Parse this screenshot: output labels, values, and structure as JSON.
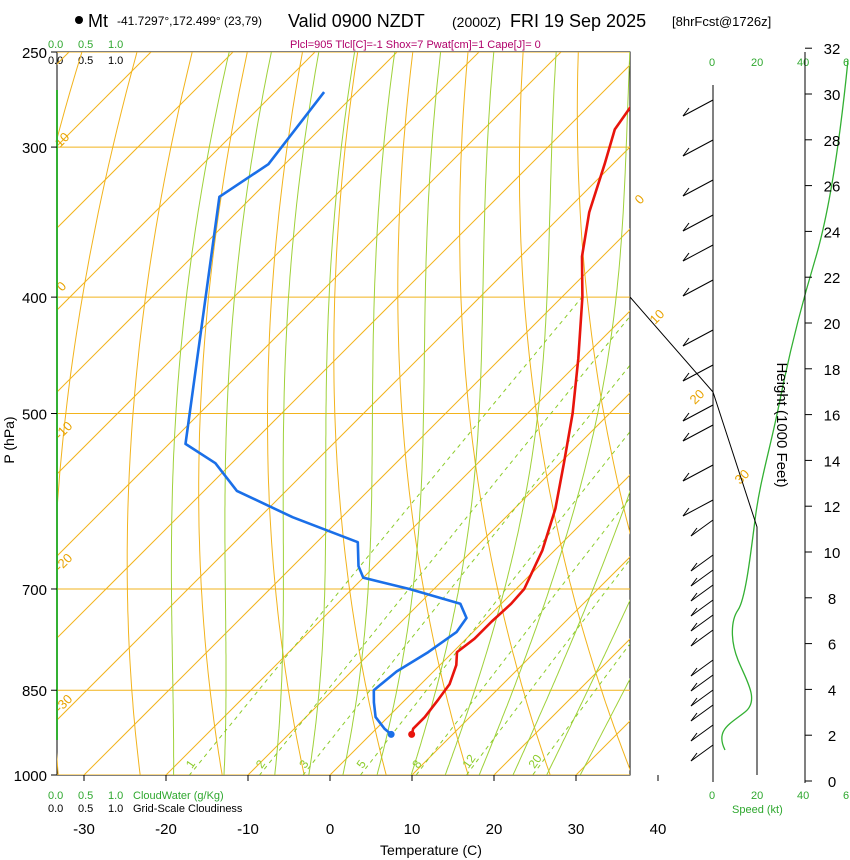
{
  "header": {
    "station": "Mt",
    "coords": "-41.7297°,172.499° (23,79)",
    "valid": "Valid 0900 NZDT",
    "utc": "(2000Z)",
    "date": "FRI 19 Sep 2025",
    "forecast": "[8hrFcst@1726z]",
    "params": "Plcl=905 Tlcl[C]=-1 Shox=7 Pwat[cm]=1 Cape[J]= 0"
  },
  "colors": {
    "temperature": "#e8140c",
    "dewpoint": "#1a6fe8",
    "isotherm": "#f2b31c",
    "dry_adiabat": "#f2b31c",
    "moist_adiabat": "#9fd13a",
    "mixing_ratio": "#8ccc2a",
    "speed_profile": "#33b033",
    "green_text": "#2fa82f",
    "params_text": "#b0006a"
  },
  "scales": {
    "cloudwater_top": [
      "0.0",
      "0.5",
      "1.0"
    ],
    "cloudiness_top": [
      "0.0",
      "0.5",
      "1.0"
    ],
    "cloudwater_bottom": [
      "0.0",
      "0.5",
      "1.0"
    ],
    "cloudwater_label": "CloudWater (g/Kg)",
    "cloudiness_bottom": [
      "0.0",
      "0.5",
      "1.0"
    ],
    "cloudiness_label": "Grid-Scale Cloudiness",
    "speed_ticks": [
      "0",
      "20",
      "40",
      "6"
    ],
    "speed_label": "Speed (kt)"
  },
  "chart_data": {
    "type": "line",
    "title": "Valid 0900 NZDT (2000Z) FRI 19 Sep 2025",
    "xlabel": "Temperature (C)",
    "ylabel": "P (hPa)",
    "y2label": "Height (1000 Feet)",
    "x_ticks": [
      -30,
      -20,
      -10,
      0,
      10,
      20,
      30,
      40
    ],
    "xlim": [
      -34,
      36
    ],
    "p_ticks": [
      1000,
      850,
      700,
      500,
      400,
      300,
      250
    ],
    "plim": [
      1000,
      250
    ],
    "skew_deg_per_hpa_log": true,
    "height_ticks": [
      0,
      2,
      4,
      6,
      8,
      10,
      12,
      14,
      16,
      18,
      20,
      22,
      24,
      26,
      28,
      30,
      32
    ],
    "isotherm_labels": [
      {
        "t": 0,
        "label": "0"
      },
      {
        "t": 10,
        "label": "10"
      },
      {
        "t": 20,
        "label": "20"
      },
      {
        "t": 30,
        "label": "30"
      },
      {
        "t": -10,
        "label": "-10"
      },
      {
        "t": -20,
        "label": "-20"
      },
      {
        "t": -30,
        "label": "-30"
      },
      {
        "t": 10,
        "label": "10",
        "side": "top"
      },
      {
        "t": 0,
        "label": "0",
        "side": "left"
      }
    ],
    "mixing_ratio_labels": [
      "1",
      "2",
      "3",
      "5",
      "8",
      "12",
      "20"
    ],
    "series": [
      {
        "name": "temperature",
        "points": [
          {
            "p": 925,
            "t": 5.0
          },
          {
            "p": 915,
            "t": 4.5
          },
          {
            "p": 895,
            "t": 4.5
          },
          {
            "p": 865,
            "t": 4.0
          },
          {
            "p": 840,
            "t": 3.5
          },
          {
            "p": 810,
            "t": 2.0
          },
          {
            "p": 790,
            "t": 0.5
          },
          {
            "p": 770,
            "t": 1.0
          },
          {
            "p": 745,
            "t": 1.0
          },
          {
            "p": 720,
            "t": 1.2
          },
          {
            "p": 700,
            "t": 1.0
          },
          {
            "p": 650,
            "t": -1.5
          },
          {
            "p": 600,
            "t": -5.0
          },
          {
            "p": 550,
            "t": -9.5
          },
          {
            "p": 500,
            "t": -14.5
          },
          {
            "p": 450,
            "t": -20.5
          },
          {
            "p": 400,
            "t": -27.5
          },
          {
            "p": 370,
            "t": -32.5
          },
          {
            "p": 340,
            "t": -37.0
          },
          {
            "p": 310,
            "t": -41.0
          },
          {
            "p": 290,
            "t": -44.0
          },
          {
            "p": 268,
            "t": -45.5
          }
        ]
      },
      {
        "name": "dewpoint",
        "points": [
          {
            "p": 925,
            "t": 2.5
          },
          {
            "p": 915,
            "t": 1.0
          },
          {
            "p": 895,
            "t": -1.5
          },
          {
            "p": 870,
            "t": -3.5
          },
          {
            "p": 850,
            "t": -5.0
          },
          {
            "p": 820,
            "t": -4.5
          },
          {
            "p": 790,
            "t": -3.0
          },
          {
            "p": 760,
            "t": -2.0
          },
          {
            "p": 740,
            "t": -2.5
          },
          {
            "p": 720,
            "t": -5.0
          },
          {
            "p": 700,
            "t": -13.0
          },
          {
            "p": 685,
            "t": -20.0
          },
          {
            "p": 670,
            "t": -22.0
          },
          {
            "p": 640,
            "t": -25.0
          },
          {
            "p": 610,
            "t": -36.0
          },
          {
            "p": 580,
            "t": -46.0
          },
          {
            "p": 550,
            "t": -52.0
          },
          {
            "p": 530,
            "t": -58.0
          },
          {
            "p": 330,
            "t": -84.0
          },
          {
            "p": 310,
            "t": -82.0
          },
          {
            "p": 270,
            "t": -84.0
          }
        ]
      }
    ]
  }
}
